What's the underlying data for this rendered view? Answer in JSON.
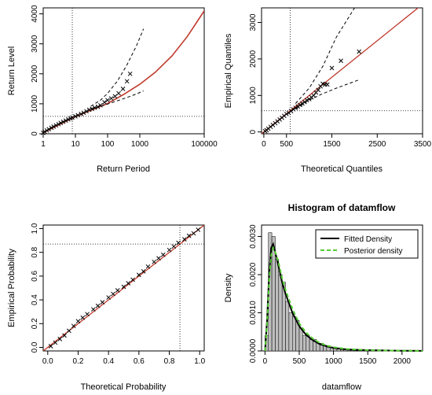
{
  "chart_data": [
    {
      "id": "return-level",
      "type": "scatter",
      "title": "",
      "xlabel": "Return Period",
      "ylabel": "Return Level",
      "x_scale": "log",
      "xlim": [
        1,
        100000
      ],
      "ylim": [
        0,
        4200
      ],
      "x_ticks": [
        {
          "v": 1,
          "label": "1"
        },
        {
          "v": 10,
          "label": "10"
        },
        {
          "v": 100,
          "label": "100"
        },
        {
          "v": 1000,
          "label": "1000"
        },
        {
          "v": 100000,
          "label": "100000"
        }
      ],
      "y_ticks": [
        {
          "v": 0,
          "label": "0"
        },
        {
          "v": 1000,
          "label": "1000"
        },
        {
          "v": 2000,
          "label": "2000"
        },
        {
          "v": 3000,
          "label": "3000"
        },
        {
          "v": 4000,
          "label": "4000"
        }
      ],
      "ref_lines": {
        "vertical_x": 8,
        "horizontal_y": 580
      },
      "fitted_curve": [
        [
          1,
          30
        ],
        [
          2,
          200
        ],
        [
          4,
          360
        ],
        [
          8,
          520
        ],
        [
          20,
          700
        ],
        [
          50,
          880
        ],
        [
          100,
          1010
        ],
        [
          300,
          1300
        ],
        [
          1000,
          1650
        ],
        [
          3000,
          2050
        ],
        [
          10000,
          2600
        ],
        [
          30000,
          3250
        ],
        [
          100000,
          4100
        ]
      ],
      "ci_upper": [
        [
          30,
          920
        ],
        [
          60,
          1120
        ],
        [
          100,
          1350
        ],
        [
          200,
          1750
        ],
        [
          400,
          2300
        ],
        [
          800,
          2950
        ],
        [
          1300,
          3500
        ]
      ],
      "ci_lower": [
        [
          30,
          820
        ],
        [
          60,
          920
        ],
        [
          100,
          990
        ],
        [
          200,
          1100
        ],
        [
          400,
          1210
        ],
        [
          800,
          1330
        ],
        [
          1300,
          1430
        ]
      ],
      "points": [
        [
          1,
          30
        ],
        [
          1.1,
          70
        ],
        [
          1.3,
          110
        ],
        [
          1.5,
          150
        ],
        [
          1.8,
          200
        ],
        [
          2.1,
          240
        ],
        [
          2.5,
          280
        ],
        [
          3,
          320
        ],
        [
          3.5,
          360
        ],
        [
          4.2,
          400
        ],
        [
          5,
          440
        ],
        [
          6,
          480
        ],
        [
          7,
          510
        ],
        [
          8,
          540
        ],
        [
          10,
          580
        ],
        [
          12,
          620
        ],
        [
          15,
          660
        ],
        [
          18,
          700
        ],
        [
          22,
          750
        ],
        [
          27,
          800
        ],
        [
          33,
          830
        ],
        [
          40,
          870
        ],
        [
          50,
          900
        ],
        [
          60,
          950
        ],
        [
          80,
          1050
        ],
        [
          100,
          1120
        ],
        [
          130,
          1180
        ],
        [
          170,
          1250
        ],
        [
          220,
          1350
        ],
        [
          300,
          1500
        ],
        [
          400,
          1750
        ],
        [
          500,
          2000
        ]
      ]
    },
    {
      "id": "qq-plot",
      "type": "scatter",
      "title": "",
      "xlabel": "Theoretical Quantiles",
      "ylabel": "Empirical Quantiles",
      "xlim": [
        -50,
        3500
      ],
      "ylim": [
        -50,
        3400
      ],
      "x_ticks": [
        {
          "v": 0,
          "label": "0"
        },
        {
          "v": 500,
          "label": "500"
        },
        {
          "v": 1500,
          "label": "1500"
        },
        {
          "v": 2500,
          "label": "2500"
        },
        {
          "v": 3500,
          "label": "3500"
        }
      ],
      "y_ticks": [
        {
          "v": 0,
          "label": "0"
        },
        {
          "v": 1000,
          "label": "1000"
        },
        {
          "v": 2000,
          "label": "2000"
        },
        {
          "v": 3000,
          "label": "3000"
        }
      ],
      "ref_lines": {
        "vertical_x": 580,
        "horizontal_y": 580
      },
      "identity_line": [
        [
          -50,
          -50
        ],
        [
          3500,
          3500
        ]
      ],
      "ci_upper": [
        [
          700,
          780
        ],
        [
          1000,
          1200
        ],
        [
          1300,
          1800
        ],
        [
          1600,
          2600
        ],
        [
          2000,
          3400
        ]
      ],
      "ci_lower": [
        [
          700,
          620
        ],
        [
          1000,
          870
        ],
        [
          1300,
          1050
        ],
        [
          1600,
          1200
        ],
        [
          2100,
          1430
        ]
      ],
      "points": [
        [
          30,
          20
        ],
        [
          60,
          50
        ],
        [
          100,
          90
        ],
        [
          150,
          140
        ],
        [
          200,
          190
        ],
        [
          250,
          240
        ],
        [
          300,
          290
        ],
        [
          350,
          340
        ],
        [
          400,
          390
        ],
        [
          450,
          440
        ],
        [
          500,
          490
        ],
        [
          550,
          520
        ],
        [
          600,
          570
        ],
        [
          650,
          620
        ],
        [
          700,
          660
        ],
        [
          750,
          700
        ],
        [
          800,
          740
        ],
        [
          850,
          780
        ],
        [
          900,
          820
        ],
        [
          950,
          870
        ],
        [
          1000,
          900
        ],
        [
          1050,
          950
        ],
        [
          1100,
          1000
        ],
        [
          1150,
          1080
        ],
        [
          1200,
          1150
        ],
        [
          1250,
          1250
        ],
        [
          1300,
          1320
        ],
        [
          1350,
          1300
        ],
        [
          1400,
          1300
        ],
        [
          1500,
          1750
        ],
        [
          1700,
          1950
        ],
        [
          2100,
          2200
        ]
      ]
    },
    {
      "id": "pp-plot",
      "type": "scatter",
      "title": "",
      "xlabel": "Theoretical Probability",
      "ylabel": "Empirical Probability",
      "xlim": [
        -0.03,
        1.03
      ],
      "ylim": [
        -0.03,
        1.03
      ],
      "x_ticks": [
        {
          "v": 0,
          "label": "0.0"
        },
        {
          "v": 0.2,
          "label": "0.2"
        },
        {
          "v": 0.4,
          "label": "0.4"
        },
        {
          "v": 0.6,
          "label": "0.6"
        },
        {
          "v": 0.8,
          "label": "0.8"
        },
        {
          "v": 1.0,
          "label": "1.0"
        }
      ],
      "y_ticks": [
        {
          "v": 0,
          "label": "0.0"
        },
        {
          "v": 0.2,
          "label": "0.2"
        },
        {
          "v": 0.4,
          "label": "0.4"
        },
        {
          "v": 0.6,
          "label": "0.6"
        },
        {
          "v": 0.8,
          "label": "0.8"
        },
        {
          "v": 1.0,
          "label": "1.0"
        }
      ],
      "ref_lines": {
        "vertical_x": 0.87,
        "horizontal_y": 0.87
      },
      "identity_line": [
        [
          -0.03,
          -0.03
        ],
        [
          1.03,
          1.03
        ]
      ],
      "points": [
        [
          0.02,
          0.01
        ],
        [
          0.05,
          0.04
        ],
        [
          0.08,
          0.07
        ],
        [
          0.11,
          0.1
        ],
        [
          0.14,
          0.14
        ],
        [
          0.17,
          0.18
        ],
        [
          0.2,
          0.22
        ],
        [
          0.23,
          0.25
        ],
        [
          0.26,
          0.28
        ],
        [
          0.3,
          0.32
        ],
        [
          0.33,
          0.35
        ],
        [
          0.36,
          0.38
        ],
        [
          0.4,
          0.42
        ],
        [
          0.43,
          0.45
        ],
        [
          0.46,
          0.48
        ],
        [
          0.5,
          0.51
        ],
        [
          0.53,
          0.54
        ],
        [
          0.56,
          0.57
        ],
        [
          0.6,
          0.61
        ],
        [
          0.63,
          0.64
        ],
        [
          0.66,
          0.68
        ],
        [
          0.7,
          0.72
        ],
        [
          0.73,
          0.75
        ],
        [
          0.76,
          0.78
        ],
        [
          0.8,
          0.82
        ],
        [
          0.83,
          0.85
        ],
        [
          0.86,
          0.88
        ],
        [
          0.9,
          0.91
        ],
        [
          0.93,
          0.94
        ],
        [
          0.96,
          0.96
        ],
        [
          0.99,
          0.99
        ]
      ]
    },
    {
      "id": "histogram",
      "type": "bar",
      "title": "Histogram of datamflow",
      "xlabel": "datamflow",
      "ylabel": "Density",
      "xlim": [
        -50,
        2300
      ],
      "ylim": [
        0,
        0.0033
      ],
      "x_ticks": [
        {
          "v": 0,
          "label": "0"
        },
        {
          "v": 500,
          "label": "500"
        },
        {
          "v": 1000,
          "label": "1000"
        },
        {
          "v": 1500,
          "label": "1500"
        },
        {
          "v": 2000,
          "label": "2000"
        }
      ],
      "y_ticks": [
        {
          "v": 0,
          "label": "0.0000"
        },
        {
          "v": 0.001,
          "label": "0.0010"
        },
        {
          "v": 0.002,
          "label": "0.0020"
        },
        {
          "v": 0.003,
          "label": "0.0030"
        }
      ],
      "bin_width": 50,
      "bins_start": [
        0,
        50,
        100,
        150,
        200,
        250,
        300,
        350,
        400,
        450,
        500,
        550,
        600,
        650,
        700,
        750,
        800,
        850,
        900,
        950,
        1000,
        1050,
        1100,
        1150,
        1200,
        1250,
        1300,
        1350,
        1400,
        1450,
        1500,
        1550,
        1600,
        1650,
        1700,
        1750,
        1800,
        1850,
        1900,
        1950,
        2000,
        2050,
        2100,
        2150,
        2200
      ],
      "densities": [
        0.0004,
        0.0031,
        0.003,
        0.0024,
        0.002,
        0.0018,
        0.0013,
        0.001,
        0.0009,
        0.0008,
        0.0006,
        0.0004,
        0.0004,
        0.0003,
        0.0003,
        0.0002,
        0.0002,
        0.00015,
        0.0001,
        0.0001,
        8e-05,
        5e-05,
        3e-05,
        3e-05,
        2e-05,
        2e-05,
        1e-05,
        1e-05,
        1e-05,
        1e-05,
        1e-05,
        5e-06,
        5e-06,
        5e-06,
        5e-06,
        5e-06,
        5e-06,
        5e-06,
        5e-06,
        5e-06,
        1e-05,
        5e-06,
        5e-06,
        5e-06,
        5e-06
      ],
      "fitted_density": [
        [
          0,
          0
        ],
        [
          30,
          0.0008
        ],
        [
          60,
          0.002
        ],
        [
          90,
          0.0027
        ],
        [
          120,
          0.0028
        ],
        [
          150,
          0.0026
        ],
        [
          200,
          0.0022
        ],
        [
          250,
          0.0018
        ],
        [
          300,
          0.0015
        ],
        [
          400,
          0.001
        ],
        [
          500,
          0.00065
        ],
        [
          600,
          0.00042
        ],
        [
          700,
          0.00028
        ],
        [
          800,
          0.00018
        ],
        [
          900,
          0.00012
        ],
        [
          1000,
          8e-05
        ],
        [
          1200,
          4e-05
        ],
        [
          1500,
          2e-05
        ],
        [
          2000,
          5e-06
        ],
        [
          2300,
          2e-06
        ]
      ],
      "posterior_density": [
        [
          0,
          0
        ],
        [
          30,
          0.0007
        ],
        [
          60,
          0.0018
        ],
        [
          90,
          0.0025
        ],
        [
          120,
          0.0027
        ],
        [
          150,
          0.0026
        ],
        [
          200,
          0.0023
        ],
        [
          250,
          0.0019
        ],
        [
          300,
          0.0016
        ],
        [
          400,
          0.0011
        ],
        [
          500,
          0.00072
        ],
        [
          600,
          0.00048
        ],
        [
          700,
          0.00032
        ],
        [
          800,
          0.00021
        ],
        [
          900,
          0.00014
        ],
        [
          1000,
          0.0001
        ],
        [
          1200,
          5e-05
        ],
        [
          1500,
          2e-05
        ],
        [
          2000,
          6e-06
        ],
        [
          2300,
          3e-06
        ]
      ],
      "legend": {
        "position": "top-right",
        "entries": [
          {
            "name": "Fitted Density",
            "color": "#000000"
          },
          {
            "name": "Posterior density",
            "color": "#55cc33"
          }
        ]
      }
    }
  ],
  "colors": {
    "fit": "#c0392b",
    "points": "#000000",
    "hist_fill": "#bdbdbd",
    "posterior": "#55cc33"
  }
}
